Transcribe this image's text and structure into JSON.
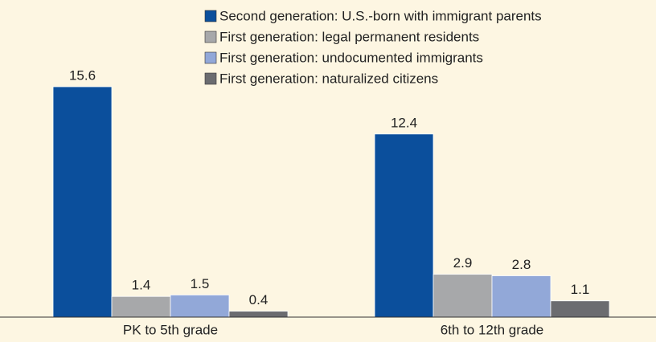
{
  "chart_data": {
    "type": "bar",
    "categories": [
      "PK to 5th grade",
      "6th to 12th grade"
    ],
    "series": [
      {
        "name": "Second generation: U.S.-born with immigrant parents",
        "color": "#0b4f9c",
        "values": [
          15.6,
          12.4
        ]
      },
      {
        "name": "First generation: legal permanent residents",
        "color": "#a7a8aa",
        "values": [
          1.4,
          2.9
        ]
      },
      {
        "name": "First generation: undocumented immigrants",
        "color": "#92a8d8",
        "values": [
          1.5,
          2.8
        ]
      },
      {
        "name": "First generation: naturalized citizens",
        "color": "#6b6c70",
        "values": [
          0.4,
          1.1
        ]
      }
    ],
    "legend": "top-right"
  }
}
